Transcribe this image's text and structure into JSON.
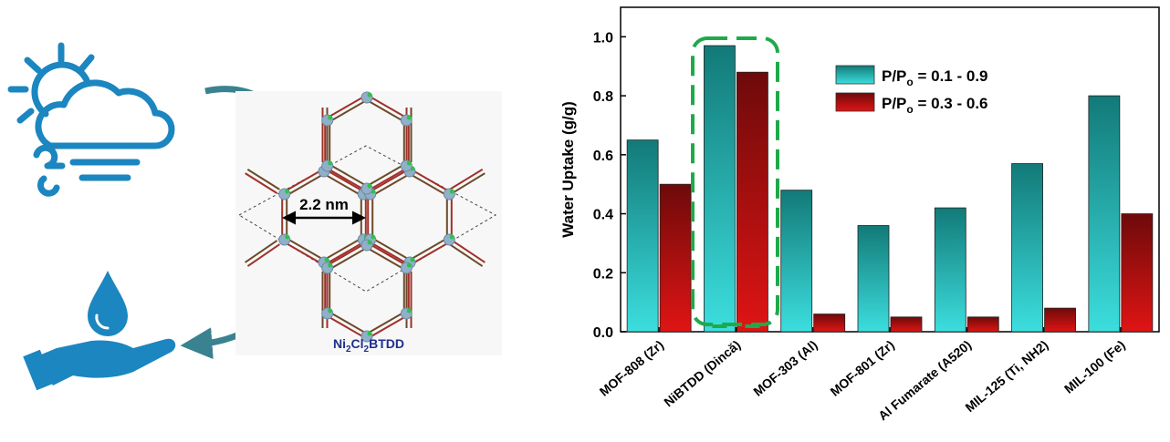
{
  "figure": {
    "cycle_arrow_color": "#3a8290",
    "icon_color": "#1b86c0",
    "weather_icon": "cloud-sun-wind-icon",
    "water_icon": "hand-water-drop-icon",
    "structure": {
      "pore_size_label": "2.2 nm",
      "name_parts": [
        "Ni",
        "2",
        "Cl",
        "2",
        "BTDD"
      ],
      "name_color": "#1e2f8c",
      "linker_color": "#a0302a",
      "node_color": "#8fb0c8",
      "chlorine_color": "#2ec24a"
    }
  },
  "chart_data": {
    "type": "bar",
    "title": "",
    "xlabel": "",
    "ylabel": "Water Uptake (g/g)",
    "ylim": [
      0,
      1.1
    ],
    "yticks": [
      "0.0",
      "0.2",
      "0.4",
      "0.6",
      "0.8",
      "1.0"
    ],
    "categories": [
      "MOF-808 (Zr)",
      "NiBTDD (Dincă)",
      "MOF-303 (Al)",
      "MOF-801 (Zr)",
      "Al Fumarate (A520)",
      "MIL-125 (Ti, NH2)",
      "MIL-100 (Fe)"
    ],
    "series": [
      {
        "name_main": "P/P",
        "name_sub": "o",
        "name_range": " = 0.1 - 0.9",
        "color_top": "#127a78",
        "color_bottom": "#3cdede",
        "values": [
          0.65,
          0.97,
          0.48,
          0.36,
          0.42,
          0.57,
          0.8
        ]
      },
      {
        "name_main": "P/P",
        "name_sub": "o",
        "name_range": " = 0.3 - 0.6",
        "color_top": "#6e0a0a",
        "color_bottom": "#e01414",
        "values": [
          0.5,
          0.88,
          0.06,
          0.05,
          0.05,
          0.08,
          0.4
        ]
      }
    ],
    "highlight": {
      "category": "NiBTDD (Dincă)",
      "color": "#1faa4a"
    },
    "legend_position": "top-right"
  }
}
